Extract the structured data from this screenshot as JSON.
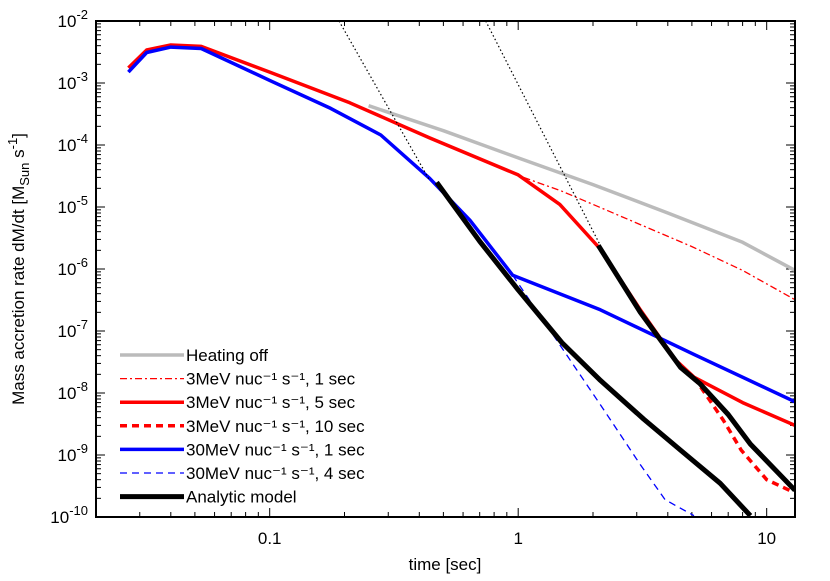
{
  "chart_data": {
    "type": "line",
    "title": "",
    "xlabel": "time [sec]",
    "ylabel": {
      "main": "Mass accretion rate  dM/dt [M",
      "sub": "Sun",
      "mid": " s",
      "sup": "-1",
      "end": "]"
    },
    "xscale": "log",
    "yscale": "log",
    "xlim": [
      0.02,
      13
    ],
    "ylim": [
      1e-10,
      0.01
    ],
    "grid": false,
    "legend_position": "bottom-left",
    "xticks": [
      {
        "value": 0.1,
        "label": "0.1"
      },
      {
        "value": 1,
        "label": "1"
      },
      {
        "value": 10,
        "label": "10"
      }
    ],
    "yticks": [
      {
        "value": 0.01,
        "base": "10",
        "exp": "-2"
      },
      {
        "value": 0.001,
        "base": "10",
        "exp": "-3"
      },
      {
        "value": 0.0001,
        "base": "10",
        "exp": "-4"
      },
      {
        "value": 1e-05,
        "base": "10",
        "exp": "-5"
      },
      {
        "value": 1e-06,
        "base": "10",
        "exp": "-6"
      },
      {
        "value": 1e-07,
        "base": "10",
        "exp": "-7"
      },
      {
        "value": 1e-08,
        "base": "10",
        "exp": "-8"
      },
      {
        "value": 1e-09,
        "base": "10",
        "exp": "-9"
      },
      {
        "value": 1e-10,
        "base": "10",
        "exp": "-10"
      }
    ],
    "series": [
      {
        "name": "Heating off",
        "color": "#bbbbbb",
        "style": "solid",
        "width": 3.5,
        "x": [
          0.25,
          0.5,
          1,
          2,
          4,
          8,
          13
        ],
        "y": [
          0.00043,
          0.00017,
          6.2e-05,
          2.3e-05,
          8e-06,
          2.7e-06,
          9.5e-07
        ]
      },
      {
        "name": "3MeV nuc⁻¹ s⁻¹, 1 sec",
        "color": "#ff0000",
        "style": "dashdot",
        "width": 1.3,
        "x": [
          1.05,
          1.5,
          2,
          3,
          5,
          8,
          13
        ],
        "y": [
          3e-05,
          1.8e-05,
          1.1e-05,
          5.5e-06,
          2.3e-06,
          9.5e-07,
          3.2e-07
        ]
      },
      {
        "name": "3MeV nuc⁻¹ s⁻¹, 5 sec",
        "color": "#ff0000",
        "style": "solid",
        "width": 3.5,
        "x": [
          0.027,
          0.032,
          0.04,
          0.053,
          0.1,
          0.21,
          0.44,
          1.0,
          1.47,
          2.14,
          3.1,
          4.3,
          5.1,
          8,
          13
        ],
        "y": [
          0.00175,
          0.0034,
          0.0041,
          0.0039,
          0.0015,
          0.00048,
          0.00013,
          3.3e-05,
          1.1e-05,
          2.1e-06,
          2.2e-07,
          3.4e-08,
          1.8e-08,
          7e-09,
          3e-09
        ]
      },
      {
        "name": "3MeV nuc⁻¹ s⁻¹, 10 sec",
        "color": "#ff0000",
        "style": "dashed",
        "width": 3.5,
        "x": [
          5.1,
          6.7,
          7.9,
          10,
          12.6
        ],
        "y": [
          1.8e-08,
          3.6e-09,
          1.2e-09,
          4e-10,
          2.6e-10
        ]
      },
      {
        "name": "30MeV nuc⁻¹ s⁻¹, 1 sec",
        "color": "#0000ff",
        "style": "solid",
        "width": 3.5,
        "x": [
          0.027,
          0.032,
          0.04,
          0.053,
          0.1,
          0.176,
          0.28,
          0.44,
          0.64,
          0.95,
          2.14,
          5.1,
          13
        ],
        "y": [
          0.0015,
          0.0031,
          0.0038,
          0.0036,
          0.0011,
          0.00039,
          0.000145,
          2.9e-05,
          6.1e-06,
          7.9e-07,
          2.2e-07,
          4.2e-08,
          7.2e-09
        ]
      },
      {
        "name": "30MeV nuc⁻¹ s⁻¹, 4 sec",
        "color": "#0000ff",
        "style": "dashed",
        "width": 1.3,
        "x": [
          0.95,
          1.47,
          2.14,
          3.1,
          3.9,
          5.1
        ],
        "y": [
          7.9e-07,
          6e-08,
          6.5e-09,
          7e-10,
          1.9e-10,
          1.05e-10
        ]
      },
      {
        "name": "Analytic model",
        "color": "#000000",
        "style": "solid",
        "width": 5,
        "x": [
          0.47,
          0.7,
          1.0,
          1.5,
          2.14,
          3.2,
          4.5,
          6.5,
          8.6
        ],
        "y": [
          2.5e-05,
          2.8e-06,
          4.6e-07,
          6.5e-08,
          1.6e-08,
          3.8e-09,
          1.2e-09,
          3.5e-10,
          1.05e-10
        ]
      },
      {
        "name": "",
        "legend": false,
        "color": "#000000",
        "style": "solid",
        "width": 5,
        "x": [
          2.1,
          3.1,
          4.5,
          5.4,
          7,
          8.6,
          13
        ],
        "y": [
          2.4e-06,
          2e-07,
          2.6e-08,
          1.4e-08,
          4.5e-09,
          1.5e-09,
          2.7e-10
        ]
      },
      {
        "name": "",
        "legend": false,
        "color": "#000000",
        "style": "dotted",
        "width": 1.2,
        "x": [
          0.19,
          0.44
        ],
        "y": [
          0.01,
          2.7e-05
        ]
      },
      {
        "name": "",
        "legend": false,
        "color": "#000000",
        "style": "dotted",
        "width": 1.2,
        "x": [
          0.74,
          2.14
        ],
        "y": [
          0.01,
          2.4e-06
        ]
      }
    ]
  }
}
